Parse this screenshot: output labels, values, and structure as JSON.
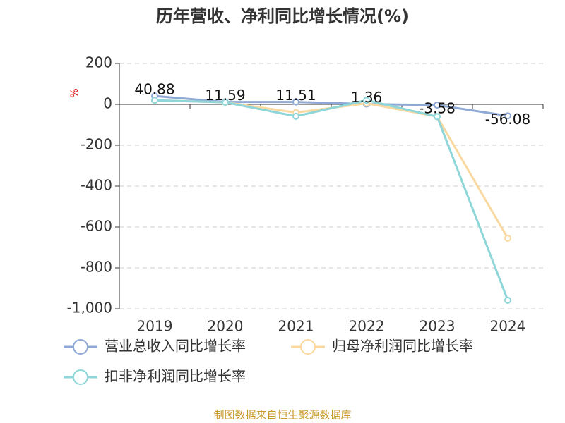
{
  "chart_data": {
    "type": "line",
    "title": "历年营收、净利同比增长情况(%)",
    "y_label": "%",
    "source": "制图数据来自恒生聚源数据库",
    "categories": [
      "2019",
      "2020",
      "2021",
      "2022",
      "2023",
      "2024"
    ],
    "series": [
      {
        "name": "营业总收入同比增长率",
        "color": "#8fa9d6",
        "values": [
          40.88,
          11.59,
          11.51,
          1.36,
          -3.58,
          -56.08
        ]
      },
      {
        "name": "归母净利润同比增长率",
        "color": "#f9d9a0",
        "values": [
          20,
          10,
          -40,
          5,
          -60,
          -655
        ]
      },
      {
        "name": "扣非净利润同比增长率",
        "color": "#8ed6d8",
        "values": [
          20,
          10,
          -58,
          20,
          -60,
          -958
        ]
      }
    ],
    "data_labels_series": 0,
    "ylim": [
      -1000,
      200
    ],
    "yticks": [
      {
        "value": -1000,
        "label": "-1,000"
      },
      -800,
      -600,
      -400,
      -200,
      0,
      200
    ],
    "grid": true
  }
}
